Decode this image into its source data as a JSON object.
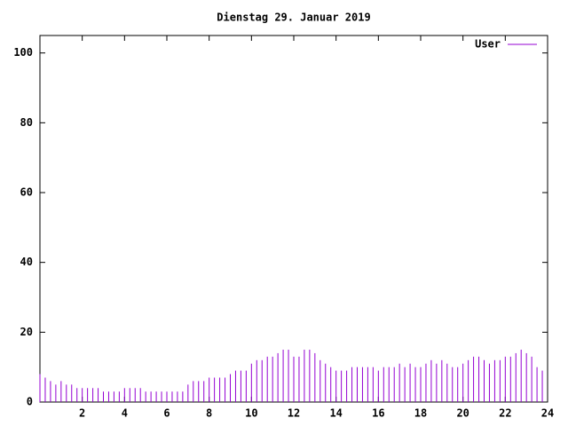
{
  "chart_data": {
    "type": "impulse",
    "title": "Dienstag 29. Januar 2019",
    "x": [
      0,
      0.25,
      0.5,
      0.75,
      1,
      1.25,
      1.5,
      1.75,
      2,
      2.25,
      2.5,
      2.75,
      3,
      3.25,
      3.5,
      3.75,
      4,
      4.25,
      4.5,
      4.75,
      5,
      5.25,
      5.5,
      5.75,
      6,
      6.25,
      6.5,
      6.75,
      7,
      7.25,
      7.5,
      7.75,
      8,
      8.25,
      8.5,
      8.75,
      9,
      9.25,
      9.5,
      9.75,
      10,
      10.25,
      10.5,
      10.75,
      11,
      11.25,
      11.5,
      11.75,
      12,
      12.25,
      12.5,
      12.75,
      13,
      13.25,
      13.5,
      13.75,
      14,
      14.25,
      14.5,
      14.75,
      15,
      15.25,
      15.5,
      15.75,
      16,
      16.25,
      16.5,
      16.75,
      17,
      17.25,
      17.5,
      17.75,
      18,
      18.25,
      18.5,
      18.75,
      19,
      19.25,
      19.5,
      19.75,
      20,
      20.25,
      20.5,
      20.75,
      21,
      21.25,
      21.5,
      21.75,
      22,
      22.25,
      22.5,
      22.75,
      23,
      23.25,
      23.5,
      23.75
    ],
    "series": [
      {
        "name": "User",
        "color": "#9400d3",
        "values": [
          8,
          7,
          6,
          5,
          6,
          5,
          5,
          4,
          4,
          4,
          4,
          4,
          3,
          3,
          3,
          3,
          4,
          4,
          4,
          4,
          3,
          3,
          3,
          3,
          3,
          3,
          3,
          3,
          5,
          6,
          6,
          6,
          7,
          7,
          7,
          7,
          8,
          9,
          9,
          9,
          11,
          12,
          12,
          13,
          13,
          14,
          15,
          15,
          13,
          13,
          15,
          15,
          14,
          12,
          11,
          10,
          9,
          9,
          9,
          10,
          10,
          10,
          10,
          10,
          9,
          10,
          10,
          10,
          11,
          10,
          11,
          10,
          10,
          11,
          12,
          11,
          12,
          11,
          10,
          10,
          11,
          12,
          13,
          13,
          12,
          11,
          12,
          12,
          13,
          13,
          14,
          15,
          14,
          13,
          10,
          9
        ]
      }
    ],
    "xlim": [
      0,
      24
    ],
    "xticks": [
      2,
      4,
      6,
      8,
      10,
      12,
      14,
      16,
      18,
      20,
      22,
      24
    ],
    "ylim": [
      0,
      105
    ],
    "yticks": [
      0,
      20,
      40,
      60,
      80,
      100
    ],
    "legend": "top-right"
  }
}
